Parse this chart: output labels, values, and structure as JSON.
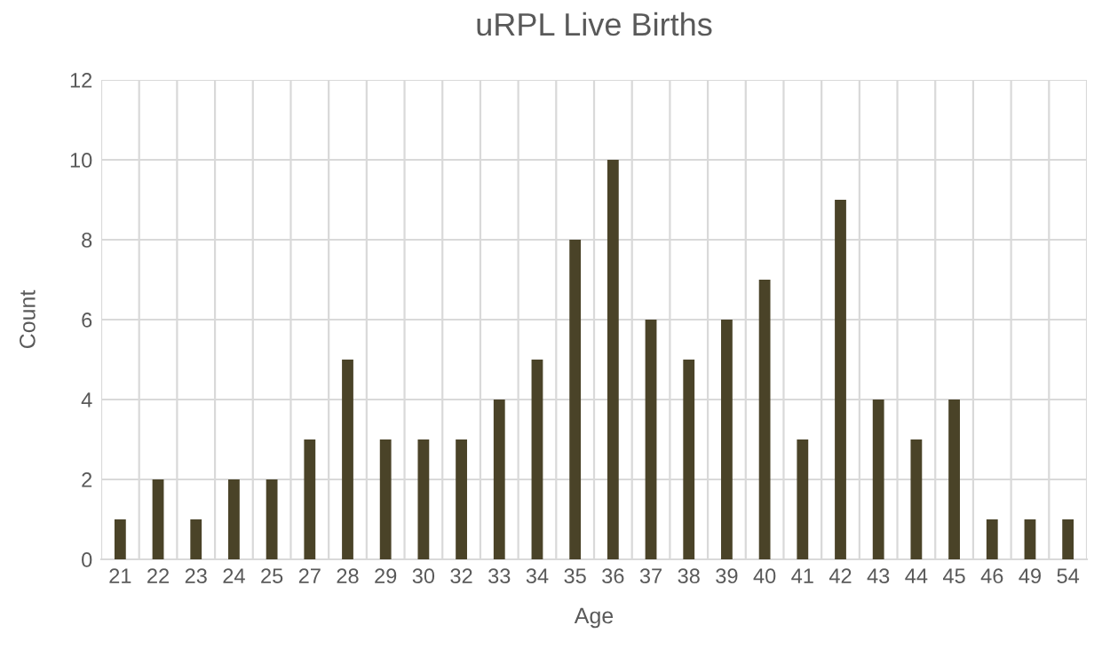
{
  "chart_data": {
    "type": "bar",
    "title": "uRPL Live Births",
    "xlabel": "Age",
    "ylabel": "Count",
    "categories": [
      "21",
      "22",
      "23",
      "24",
      "25",
      "27",
      "28",
      "29",
      "30",
      "32",
      "33",
      "34",
      "35",
      "36",
      "37",
      "38",
      "39",
      "40",
      "41",
      "42",
      "43",
      "44",
      "45",
      "46",
      "49",
      "54"
    ],
    "values": [
      1,
      2,
      1,
      2,
      2,
      3,
      5,
      3,
      3,
      3,
      4,
      5,
      8,
      10,
      6,
      5,
      6,
      7,
      3,
      9,
      4,
      3,
      4,
      1,
      1,
      1
    ],
    "color": "#4a4328",
    "ylim": [
      0,
      12
    ],
    "yticks": [
      0,
      2,
      4,
      6,
      8,
      10,
      12
    ],
    "grid": true,
    "legend": false
  }
}
